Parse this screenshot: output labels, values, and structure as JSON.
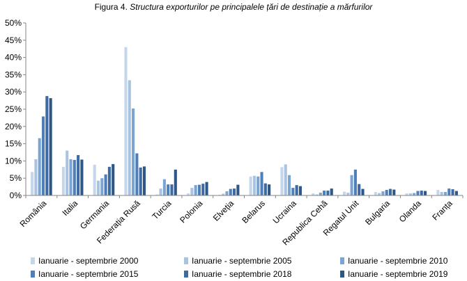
{
  "title_prefix": "Figura 4.",
  "title_main": "Structura exporturilor pe principalele țări de destinație a mărfurilor",
  "chart_data": {
    "type": "bar",
    "categories": [
      "România",
      "Italia",
      "Germania",
      "Federația Rusă",
      "Turcia",
      "Polonia",
      "Elveția",
      "Belarus",
      "Ucraina",
      "Republica Cehă",
      "Regatul Unit",
      "Bulgaria",
      "Olanda",
      "Franța"
    ],
    "y_tick_labels": [
      "0%",
      "5%",
      "10%",
      "15%",
      "20%",
      "25%",
      "30%",
      "35%",
      "40%",
      "45%",
      "50%"
    ],
    "ylim": [
      0,
      50
    ],
    "grid": false,
    "legend_position": "bottom",
    "series": [
      {
        "name": "Ianuarie - septembrie  2000",
        "color": "#c6d6ea",
        "values": [
          6.8,
          8.3,
          8.9,
          43.0,
          0.3,
          0.6,
          0.2,
          5.5,
          8.2,
          0.6,
          1.1,
          1.0,
          0.6,
          1.6
        ]
      },
      {
        "name": "Ianuarie - septembrie  2005",
        "color": "#a9c3e2",
        "values": [
          10.5,
          13.0,
          4.3,
          33.4,
          2.0,
          2.2,
          0.5,
          5.7,
          9.0,
          0.3,
          0.8,
          0.7,
          0.6,
          1.0
        ]
      },
      {
        "name": "Ianuarie - septembrie  2010",
        "color": "#7ca4d3",
        "values": [
          16.6,
          10.5,
          5.0,
          25.2,
          4.7,
          3.0,
          1.2,
          5.5,
          5.9,
          0.8,
          5.9,
          1.2,
          0.7,
          1.0
        ]
      },
      {
        "name": "Ianuarie - septembrie  2015",
        "color": "#4f7fb9",
        "values": [
          22.9,
          10.3,
          6.1,
          12.2,
          3.2,
          3.1,
          1.9,
          6.8,
          2.2,
          1.4,
          7.5,
          1.6,
          1.3,
          2.0
        ]
      },
      {
        "name": "Ianuarie - septembrie  2018",
        "color": "#3d6aa2",
        "values": [
          28.8,
          11.7,
          8.3,
          8.1,
          3.2,
          3.4,
          2.0,
          3.5,
          3.0,
          1.4,
          3.3,
          1.9,
          1.4,
          1.8
        ]
      },
      {
        "name": "Ianuarie - septembrie  2019",
        "color": "#2e5686",
        "values": [
          28.2,
          10.4,
          9.1,
          8.4,
          7.5,
          3.9,
          3.1,
          3.2,
          2.7,
          2.0,
          1.9,
          1.7,
          1.3,
          1.3
        ]
      }
    ]
  }
}
